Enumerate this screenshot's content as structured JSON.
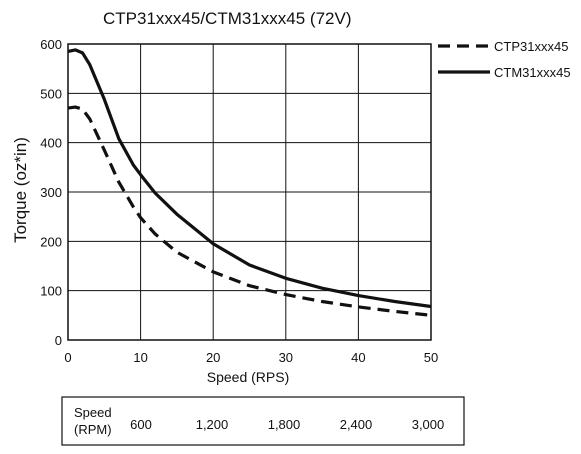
{
  "chart_data": {
    "type": "line",
    "title": "CTP31xxx45/CTM31xxx45 (72V)",
    "xlabel": "Speed (RPS)",
    "ylabel": "Torque (oz*in)",
    "xlim": [
      0,
      50
    ],
    "ylim": [
      0,
      600
    ],
    "x_ticks": [
      "0",
      "10",
      "20",
      "30",
      "40",
      "50"
    ],
    "y_ticks": [
      "0",
      "100",
      "200",
      "300",
      "400",
      "500",
      "600"
    ],
    "x_tick_values": [
      0,
      10,
      20,
      30,
      40,
      50
    ],
    "y_tick_values": [
      0,
      100,
      200,
      300,
      400,
      500,
      600
    ],
    "grid": true,
    "legend_position": "top-right outside",
    "series": [
      {
        "name": "CTP31xxx45",
        "style": "dashed",
        "color": "#111111",
        "x": [
          0,
          1,
          2,
          3,
          5,
          7,
          9,
          10,
          12,
          15,
          20,
          25,
          30,
          35,
          40,
          45,
          50
        ],
        "y": [
          470,
          472,
          468,
          448,
          385,
          320,
          270,
          248,
          215,
          178,
          138,
          110,
          92,
          78,
          67,
          58,
          50
        ]
      },
      {
        "name": "CTM31xxx45",
        "style": "solid",
        "color": "#111111",
        "x": [
          0,
          1,
          2,
          3,
          5,
          7,
          9,
          10,
          12,
          15,
          20,
          25,
          30,
          35,
          40,
          45,
          50
        ],
        "y": [
          585,
          588,
          582,
          558,
          488,
          408,
          355,
          335,
          298,
          255,
          195,
          152,
          125,
          105,
          90,
          78,
          68
        ]
      }
    ],
    "rpm_table": {
      "header": "Speed\n(RPM)",
      "values": [
        "600",
        "1,200",
        "1,800",
        "2,400",
        "3,000"
      ]
    }
  }
}
